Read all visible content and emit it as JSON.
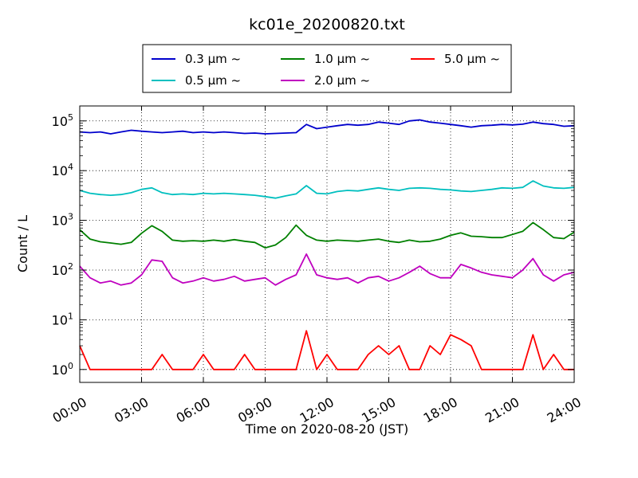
{
  "chart_data": {
    "type": "line",
    "title": "kc01e_20200820.txt",
    "xlabel": "Time on 2020-08-20 (JST)",
    "ylabel": "Count / L",
    "y_scale": "log",
    "ylim": [
      0.55,
      200000
    ],
    "xlim": [
      "00:00",
      "24:00"
    ],
    "grid": true,
    "legend_position": "top",
    "x_ticks": [
      "00:00",
      "03:00",
      "06:00",
      "09:00",
      "12:00",
      "15:00",
      "18:00",
      "21:00",
      "24:00"
    ],
    "y_ticks": [
      {
        "value": 1,
        "base": "10",
        "exp": "0"
      },
      {
        "value": 10,
        "base": "10",
        "exp": "1"
      },
      {
        "value": 100,
        "base": "10",
        "exp": "2"
      },
      {
        "value": 1000,
        "base": "10",
        "exp": "3"
      },
      {
        "value": 10000,
        "base": "10",
        "exp": "4"
      },
      {
        "value": 100000,
        "base": "10",
        "exp": "5"
      }
    ],
    "legend": [
      {
        "label": "0.3 µm ~",
        "color": "#0000cc"
      },
      {
        "label": "1.0 µm ~",
        "color": "#008000"
      },
      {
        "label": "5.0 µm ~",
        "color": "#ff0000"
      },
      {
        "label": "0.5 µm ~",
        "color": "#00bfbf"
      },
      {
        "label": "2.0 µm ~",
        "color": "#bf00bf"
      }
    ],
    "x": [
      "00:00",
      "00:30",
      "01:00",
      "01:30",
      "02:00",
      "02:30",
      "03:00",
      "03:30",
      "04:00",
      "04:30",
      "05:00",
      "05:30",
      "06:00",
      "06:30",
      "07:00",
      "07:30",
      "08:00",
      "08:30",
      "09:00",
      "09:30",
      "10:00",
      "10:30",
      "11:00",
      "11:30",
      "12:00",
      "12:30",
      "13:00",
      "13:30",
      "14:00",
      "14:30",
      "15:00",
      "15:30",
      "16:00",
      "16:30",
      "17:00",
      "17:30",
      "18:00",
      "18:30",
      "19:00",
      "19:30",
      "20:00",
      "20:30",
      "21:00",
      "21:30",
      "22:00",
      "22:30",
      "23:00",
      "23:30",
      "24:00"
    ],
    "series": [
      {
        "name": "0.3 µm ~",
        "color": "#0000cc",
        "values": [
          60000,
          58000,
          60000,
          55000,
          60000,
          65000,
          62000,
          60000,
          58000,
          60000,
          62000,
          58000,
          60000,
          58000,
          60000,
          58000,
          56000,
          57000,
          55000,
          56000,
          57000,
          58000,
          85000,
          70000,
          75000,
          80000,
          85000,
          82000,
          85000,
          95000,
          90000,
          85000,
          100000,
          105000,
          95000,
          90000,
          85000,
          80000,
          75000,
          80000,
          82000,
          85000,
          83000,
          86000,
          95000,
          88000,
          85000,
          78000,
          80000
        ]
      },
      {
        "name": "0.5 µm ~",
        "color": "#00bfbf",
        "values": [
          4000,
          3500,
          3300,
          3200,
          3300,
          3600,
          4200,
          4500,
          3600,
          3300,
          3400,
          3300,
          3500,
          3400,
          3500,
          3400,
          3300,
          3200,
          3000,
          2800,
          3100,
          3400,
          5000,
          3500,
          3400,
          3800,
          4000,
          3900,
          4200,
          4500,
          4200,
          4000,
          4400,
          4500,
          4400,
          4200,
          4100,
          3900,
          3800,
          4000,
          4200,
          4500,
          4400,
          4600,
          6200,
          4900,
          4500,
          4400,
          4600
        ]
      },
      {
        "name": "1.0 µm ~",
        "color": "#008000",
        "values": [
          650,
          420,
          370,
          350,
          330,
          360,
          550,
          780,
          600,
          400,
          380,
          390,
          380,
          400,
          380,
          410,
          380,
          360,
          280,
          320,
          450,
          800,
          500,
          400,
          380,
          400,
          390,
          380,
          400,
          420,
          380,
          360,
          400,
          370,
          380,
          420,
          500,
          560,
          480,
          470,
          450,
          450,
          520,
          600,
          900,
          650,
          450,
          430,
          580
        ]
      },
      {
        "name": "2.0 µm ~",
        "color": "#bf00bf",
        "values": [
          120,
          70,
          55,
          60,
          50,
          55,
          80,
          160,
          150,
          70,
          55,
          60,
          70,
          60,
          65,
          75,
          60,
          65,
          70,
          50,
          65,
          80,
          210,
          80,
          70,
          65,
          70,
          55,
          70,
          75,
          60,
          70,
          90,
          120,
          85,
          70,
          70,
          130,
          110,
          90,
          80,
          75,
          70,
          100,
          170,
          80,
          60,
          80,
          90
        ]
      },
      {
        "name": "5.0 µm ~",
        "color": "#ff0000",
        "values": [
          3,
          1,
          1,
          1,
          1,
          1,
          1,
          1,
          2,
          1,
          1,
          1,
          2,
          1,
          1,
          1,
          2,
          1,
          1,
          1,
          1,
          1,
          6,
          1,
          2,
          1,
          1,
          1,
          2,
          3,
          2,
          3,
          1,
          1,
          3,
          2,
          5,
          4,
          3,
          1,
          1,
          1,
          1,
          1,
          5,
          1,
          2,
          1,
          1
        ]
      }
    ]
  }
}
